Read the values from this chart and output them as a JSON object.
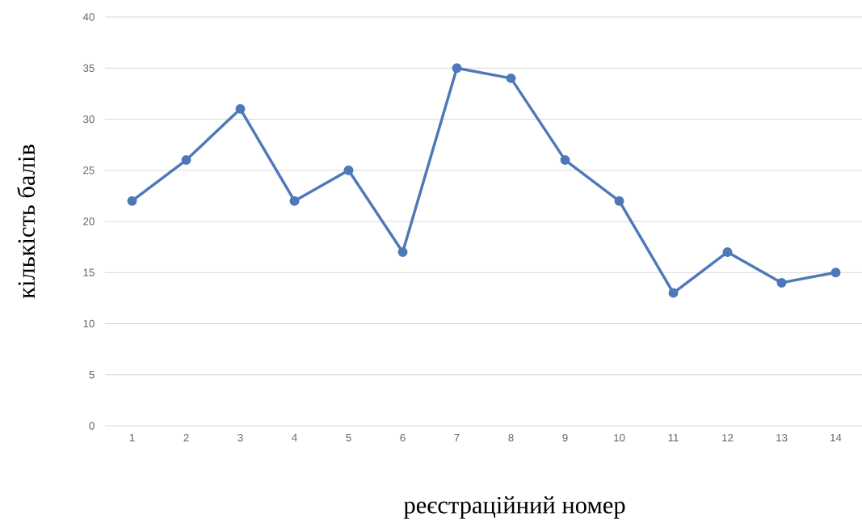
{
  "chart_data": {
    "type": "line",
    "categories": [
      "1",
      "2",
      "3",
      "4",
      "5",
      "6",
      "7",
      "8",
      "9",
      "10",
      "11",
      "12",
      "13",
      "14"
    ],
    "values": [
      22,
      26,
      31,
      22,
      25,
      17,
      35,
      34,
      26,
      22,
      13,
      17,
      14,
      15
    ],
    "color": "#4e79b8",
    "ylim": [
      0,
      40
    ],
    "yticks": [
      0,
      5,
      10,
      15,
      20,
      25,
      30,
      35,
      40
    ],
    "grid": "y",
    "marker": "circle",
    "line_style": "solid",
    "xlabel": "реєстраційний номер",
    "ylabel": "кількість балів"
  }
}
